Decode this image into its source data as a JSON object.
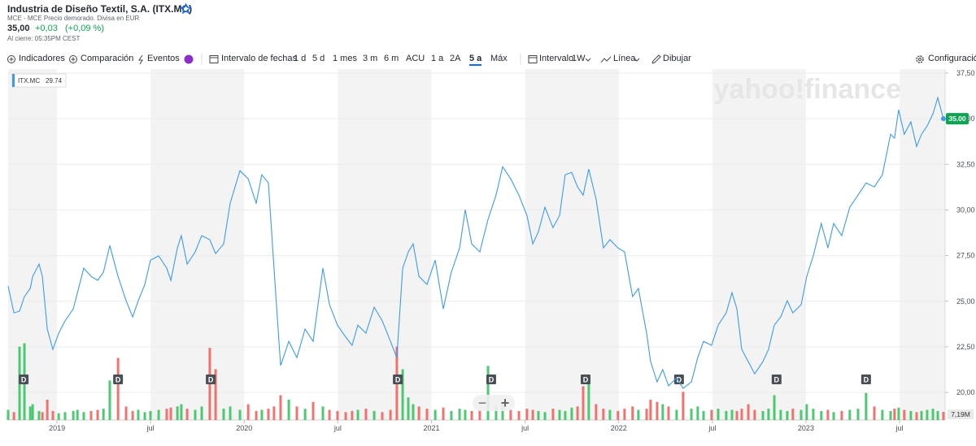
{
  "header": {
    "title": "Industria de Diseño Textil, S.A. (ITX.MC)",
    "subtitle": "MCE - MCE Precio demorado. Divisa en EUR",
    "price": "35,00",
    "change": "+0,03",
    "change_pct": "(+0,09 %)",
    "close_time": "Al cierre: 05:35PM CEST"
  },
  "toolbar": [
    "Indicadores",
    "Comparación",
    "Eventos",
    "Intervalo de fechas",
    "1 d",
    "5 d",
    "1 mes",
    "3 m",
    "6 m",
    "ACU",
    "1 a",
    "2A",
    "5 a",
    "Máx",
    "Intervalo",
    "1W",
    "Línea",
    "Dibujar",
    "Configuración"
  ],
  "chart_data": {
    "type": "line",
    "watermark": "yahoo!finance",
    "zoom": [
      "−",
      "+"
    ],
    "xlim": [
      2018.739,
      2023.743
    ],
    "ylim": [
      18.49,
      37.72
    ],
    "y2lim": [
      0,
      72
    ],
    "xticks": [
      {
        "value": 2019,
        "label": "2019"
      },
      {
        "value": 2019.5,
        "label": "jul"
      },
      {
        "value": 2020,
        "label": "2020"
      },
      {
        "value": 2020.5,
        "label": "jul"
      },
      {
        "value": 2021,
        "label": "2021"
      },
      {
        "value": 2021.5,
        "label": "jul"
      },
      {
        "value": 2022,
        "label": "2022"
      },
      {
        "value": 2022.5,
        "label": "jul"
      },
      {
        "value": 2023,
        "label": "2023"
      },
      {
        "value": 2023.5,
        "label": "jul"
      }
    ],
    "yticks": [
      {
        "value": 20,
        "label": "20,00"
      },
      {
        "value": 22.5,
        "label": "22,50"
      },
      {
        "value": 25,
        "label": "25,00"
      },
      {
        "value": 27.5,
        "label": "27,50"
      },
      {
        "value": 30,
        "label": "30,00"
      },
      {
        "value": 32.5,
        "label": "32,50"
      },
      {
        "value": 35,
        "label": "35,00"
      },
      {
        "value": 37.5,
        "label": "37,50"
      }
    ],
    "grid": true,
    "dividends": [
      {
        "x": 2018.822,
        "label": "D"
      },
      {
        "x": 2019.326,
        "label": "D"
      },
      {
        "x": 2019.821,
        "label": "D"
      },
      {
        "x": 2020.82,
        "label": "D"
      },
      {
        "x": 2021.319,
        "label": "D"
      },
      {
        "x": 2021.823,
        "label": "D"
      },
      {
        "x": 2022.322,
        "label": "D"
      },
      {
        "x": 2022.843,
        "label": "D"
      },
      {
        "x": 2023.321,
        "label": "D"
      }
    ],
    "x": [
      2018.739,
      2018.77,
      2018.8,
      2018.826,
      2018.857,
      2018.87,
      2018.904,
      2018.922,
      2018.948,
      2018.978,
      2019.009,
      2019.043,
      2019.087,
      2019.109,
      2019.143,
      2019.182,
      2019.217,
      2019.248,
      2019.282,
      2019.326,
      2019.369,
      2019.404,
      2019.434,
      2019.469,
      2019.499,
      2019.543,
      2019.586,
      2019.608,
      2019.643,
      2019.664,
      2019.695,
      2019.738,
      2019.773,
      2019.816,
      2019.847,
      2019.89,
      2019.925,
      2019.977,
      2020.021,
      2020.064,
      2020.094,
      2020.129,
      2020.159,
      2020.194,
      2020.238,
      2020.281,
      2020.325,
      2020.368,
      2020.42,
      2020.455,
      2020.498,
      2020.542,
      2020.576,
      2020.607,
      2020.65,
      2020.694,
      2020.737,
      2020.781,
      2020.815,
      2020.846,
      2020.876,
      2020.902,
      2020.933,
      2020.976,
      2021.02,
      2021.063,
      2021.106,
      2021.15,
      2021.18,
      2021.215,
      2021.258,
      2021.302,
      2021.345,
      2021.38,
      2021.423,
      2021.467,
      2021.51,
      2021.541,
      2021.571,
      2021.606,
      2021.649,
      2021.684,
      2021.714,
      2021.749,
      2021.78,
      2021.81,
      2021.84,
      2021.879,
      2021.918,
      2021.953,
      2021.996,
      2022.031,
      2022.074,
      2022.105,
      2022.149,
      2022.17,
      2022.205,
      2022.235,
      2022.266,
      2022.309,
      2022.344,
      2022.388,
      2022.422,
      2022.453,
      2022.496,
      2022.531,
      2022.574,
      2022.605,
      2022.631,
      2022.657,
      2022.692,
      2022.726,
      2022.77,
      2022.8,
      2022.831,
      2022.865,
      2022.9,
      2022.93,
      2022.974,
      2023.004,
      2023.039,
      2023.082,
      2023.117,
      2023.148,
      2023.191,
      2023.234,
      2023.278,
      2023.321,
      2023.365,
      2023.408,
      2023.452,
      2023.473,
      2023.495,
      2023.525,
      2023.56,
      2023.591,
      2023.617,
      2023.647,
      2023.678,
      2023.704,
      2023.734
    ],
    "series": [
      {
        "name": "ITX.MC",
        "color": "#3d9be9",
        "legend_value": 29.74,
        "last_value_label": "35.00",
        "last_label_color": "#0ca551",
        "values": [
          25.83,
          24.36,
          24.45,
          25.25,
          25.7,
          26.36,
          27.03,
          26.36,
          23.47,
          22.36,
          23.25,
          23.92,
          24.58,
          25.47,
          26.81,
          26.36,
          26.14,
          26.59,
          28.05,
          26.36,
          25.03,
          24.14,
          25.03,
          25.92,
          27.25,
          27.48,
          26.81,
          26.14,
          27.92,
          28.59,
          27.03,
          27.7,
          28.59,
          28.37,
          27.61,
          28.14,
          30.37,
          32.15,
          31.7,
          30.37,
          31.93,
          31.48,
          26.81,
          21.47,
          22.8,
          21.91,
          23.47,
          22.8,
          26.81,
          24.81,
          23.69,
          23.03,
          22.58,
          23.69,
          23.25,
          24.67,
          23.92,
          22.8,
          21.91,
          26.81,
          27.7,
          28.14,
          26.36,
          25.92,
          27.25,
          24.58,
          26.59,
          27.92,
          30.01,
          28.14,
          27.7,
          29.48,
          30.81,
          32.37,
          31.7,
          30.81,
          29.7,
          28.14,
          28.81,
          30.15,
          29.03,
          29.7,
          31.93,
          32.06,
          31.26,
          30.81,
          32.24,
          30.59,
          27.92,
          28.37,
          27.92,
          27.7,
          25.25,
          25.7,
          23.25,
          21.69,
          20.58,
          21.25,
          20.36,
          20.8,
          20.22,
          20.58,
          21.91,
          22.8,
          22.58,
          23.69,
          24.36,
          25.47,
          24.58,
          22.36,
          21.69,
          21.02,
          21.69,
          22.36,
          23.69,
          24.14,
          25.03,
          24.36,
          24.81,
          26.36,
          27.48,
          29.26,
          27.92,
          29.26,
          28.59,
          30.15,
          30.81,
          31.48,
          31.26,
          31.93,
          34.15,
          33.93,
          35.49,
          34.15,
          34.82,
          33.48,
          34.15,
          34.6,
          35.26,
          36.15,
          35.0
        ]
      },
      {
        "axis": "y2",
        "color_up": "#2fbf5b",
        "color_down": "#ec5a55",
        "last_value_label": "7,19M",
        "values": [
          9,
          7,
          65,
          68,
          12,
          14,
          8,
          7,
          18,
          8,
          6,
          7,
          8,
          9,
          7,
          8,
          9,
          10,
          35,
          55,
          12,
          8,
          9,
          7,
          8,
          9,
          10,
          11,
          12,
          14,
          10,
          9,
          12,
          64,
          45,
          10,
          12,
          9,
          14,
          8,
          9,
          10,
          12,
          22,
          18,
          12,
          10,
          16,
          12,
          9,
          8,
          7,
          8,
          9,
          10,
          8,
          7,
          9,
          65,
          45,
          20,
          14,
          12,
          10,
          9,
          11,
          8,
          10,
          9,
          8,
          9,
          48,
          12,
          14,
          9,
          8,
          10,
          9,
          8,
          7,
          10,
          9,
          8,
          11,
          12,
          30,
          38,
          14,
          10,
          9,
          8,
          10,
          12,
          9,
          10,
          18,
          16,
          14,
          12,
          9,
          25,
          10,
          12,
          8,
          9,
          10,
          8,
          9,
          8,
          10,
          14,
          9,
          8,
          10,
          22,
          9,
          8,
          10,
          9,
          14,
          10,
          8,
          9,
          7,
          8,
          9,
          10,
          24,
          12,
          9,
          8,
          10,
          11,
          9,
          8,
          7,
          8,
          9,
          10,
          8,
          7.19
        ]
      }
    ]
  }
}
